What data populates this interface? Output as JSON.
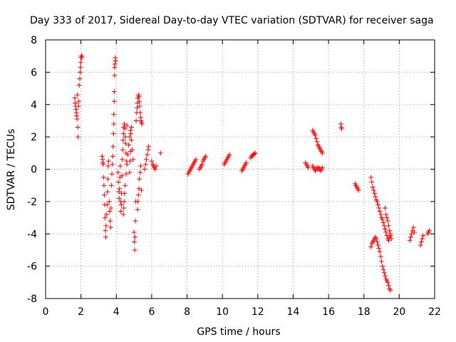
{
  "chart_data": {
    "type": "scatter",
    "title": "Day 333 of 2017, Sidereal Day-to-day VTEC variation (SDTVAR) for receiver saga",
    "xlabel": "GPS time / hours",
    "ylabel": "SDTVAR / TECUs",
    "xlim": [
      0,
      22
    ],
    "ylim": [
      -8,
      8
    ],
    "xticks": [
      0,
      2,
      4,
      6,
      8,
      10,
      12,
      14,
      16,
      18,
      20,
      22
    ],
    "yticks": [
      -8,
      -6,
      -4,
      -2,
      0,
      2,
      4,
      6,
      8
    ],
    "grid": true,
    "marker": "+",
    "marker_color": "#ff0000",
    "series": [
      {
        "name": "SDTVAR",
        "points": [
          [
            1.65,
            4.4
          ],
          [
            1.68,
            4.1
          ],
          [
            1.7,
            3.9
          ],
          [
            1.72,
            3.7
          ],
          [
            1.74,
            3.5
          ],
          [
            1.76,
            3.3
          ],
          [
            1.78,
            3.1
          ],
          [
            1.8,
            4.6
          ],
          [
            1.82,
            2.6
          ],
          [
            1.84,
            2.0
          ],
          [
            1.86,
            3.9
          ],
          [
            1.88,
            4.2
          ],
          [
            1.9,
            5.2
          ],
          [
            1.93,
            5.6
          ],
          [
            1.95,
            6.0
          ],
          [
            1.97,
            6.3
          ],
          [
            1.99,
            6.6
          ],
          [
            2.0,
            6.9
          ],
          [
            2.02,
            7.0
          ],
          [
            2.04,
            6.9
          ],
          [
            2.06,
            7.0
          ],
          [
            3.2,
            0.8
          ],
          [
            3.22,
            0.6
          ],
          [
            3.24,
            0.4
          ],
          [
            3.26,
            0.3
          ],
          [
            3.28,
            -0.5
          ],
          [
            3.3,
            -1.0
          ],
          [
            3.32,
            -1.6
          ],
          [
            3.34,
            -2.2
          ],
          [
            3.36,
            -3.0
          ],
          [
            3.38,
            -3.8
          ],
          [
            3.4,
            -4.2
          ],
          [
            3.42,
            -3.5
          ],
          [
            3.45,
            -2.8
          ],
          [
            3.48,
            -2.2
          ],
          [
            3.5,
            -1.4
          ],
          [
            3.52,
            -0.6
          ],
          [
            3.54,
            0.2
          ],
          [
            3.56,
            0.5
          ],
          [
            3.6,
            -2.0
          ],
          [
            3.62,
            -2.6
          ],
          [
            3.65,
            -3.2
          ],
          [
            3.68,
            -3.6
          ],
          [
            3.7,
            -2.4
          ],
          [
            3.72,
            -1.0
          ],
          [
            3.75,
            -0.3
          ],
          [
            3.78,
            0.3
          ],
          [
            3.8,
            0.8
          ],
          [
            3.82,
            1.4
          ],
          [
            3.84,
            2.2
          ],
          [
            3.86,
            3.4
          ],
          [
            3.88,
            4.8
          ],
          [
            3.9,
            5.8
          ],
          [
            3.92,
            6.5
          ],
          [
            3.94,
            6.9
          ],
          [
            3.96,
            6.7
          ],
          [
            3.9,
            6.3
          ],
          [
            3.88,
            4.2
          ],
          [
            3.86,
            2.8
          ],
          [
            4.1,
            -0.2
          ],
          [
            4.12,
            -0.8
          ],
          [
            4.14,
            -1.4
          ],
          [
            4.16,
            -1.8
          ],
          [
            4.18,
            -1.2
          ],
          [
            4.2,
            -0.5
          ],
          [
            4.22,
            0.2
          ],
          [
            4.24,
            -2.0
          ],
          [
            4.26,
            -2.6
          ],
          [
            4.28,
            -2.2
          ],
          [
            4.3,
            -1.5
          ],
          [
            4.32,
            -0.4
          ],
          [
            4.34,
            0.6
          ],
          [
            4.36,
            1.2
          ],
          [
            4.38,
            1.8
          ],
          [
            4.4,
            2.2
          ],
          [
            4.42,
            2.6
          ],
          [
            4.45,
            2.8
          ],
          [
            4.48,
            2.5
          ],
          [
            4.5,
            2.0
          ],
          [
            4.52,
            1.6
          ],
          [
            4.55,
            1.0
          ],
          [
            4.58,
            0.5
          ],
          [
            4.6,
            2.7
          ],
          [
            4.4,
            -2.8
          ],
          [
            4.42,
            -2.4
          ],
          [
            4.44,
            -2.0
          ],
          [
            4.46,
            -1.5
          ],
          [
            4.5,
            -1.0
          ],
          [
            4.55,
            -0.3
          ],
          [
            4.6,
            0.3
          ],
          [
            4.65,
            0.9
          ],
          [
            4.7,
            1.5
          ],
          [
            4.75,
            2.0
          ],
          [
            4.8,
            2.4
          ],
          [
            4.85,
            1.8
          ],
          [
            4.9,
            1.2
          ],
          [
            4.95,
            0.6
          ],
          [
            4.75,
            -0.2
          ],
          [
            4.78,
            0.5
          ],
          [
            4.8,
            1.1
          ],
          [
            4.82,
            2.2
          ],
          [
            4.85,
            2.6
          ],
          [
            5.0,
            -3.9
          ],
          [
            5.02,
            -4.5
          ],
          [
            5.04,
            -5.0
          ],
          [
            5.06,
            -4.2
          ],
          [
            5.08,
            -3.2
          ],
          [
            5.1,
            -2.0
          ],
          [
            5.12,
            3.0
          ],
          [
            5.15,
            3.5
          ],
          [
            5.18,
            3.8
          ],
          [
            5.2,
            4.1
          ],
          [
            5.22,
            4.4
          ],
          [
            5.25,
            4.6
          ],
          [
            5.28,
            4.5
          ],
          [
            5.3,
            4.2
          ],
          [
            5.32,
            3.9
          ],
          [
            5.35,
            3.5
          ],
          [
            5.38,
            3.2
          ],
          [
            5.4,
            3.0
          ],
          [
            5.42,
            2.9
          ],
          [
            5.45,
            2.8
          ],
          [
            5.2,
            -2.5
          ],
          [
            5.22,
            -2.0
          ],
          [
            5.25,
            -1.6
          ],
          [
            5.28,
            -1.2
          ],
          [
            5.3,
            -0.6
          ],
          [
            5.35,
            -0.2
          ],
          [
            5.38,
            0.2
          ],
          [
            5.42,
            -1.3
          ],
          [
            5.6,
            0.0
          ],
          [
            5.65,
            0.3
          ],
          [
            5.7,
            0.6
          ],
          [
            5.75,
            0.9
          ],
          [
            5.8,
            1.2
          ],
          [
            5.82,
            1.4
          ],
          [
            6.0,
            0.5
          ],
          [
            6.05,
            0.3
          ],
          [
            6.1,
            0.2
          ],
          [
            6.15,
            0.1
          ],
          [
            6.2,
            0.0
          ],
          [
            6.25,
            0.2
          ],
          [
            6.5,
            1.0
          ],
          [
            8.05,
            -0.3
          ],
          [
            8.1,
            -0.2
          ],
          [
            8.15,
            -0.1
          ],
          [
            8.2,
            0.0
          ],
          [
            8.25,
            0.1
          ],
          [
            8.3,
            0.2
          ],
          [
            8.35,
            0.3
          ],
          [
            8.4,
            0.4
          ],
          [
            8.45,
            0.5
          ],
          [
            8.5,
            0.6
          ],
          [
            8.7,
            0.0
          ],
          [
            8.75,
            0.1
          ],
          [
            8.8,
            0.2
          ],
          [
            8.85,
            0.3
          ],
          [
            8.9,
            0.5
          ],
          [
            8.95,
            0.6
          ],
          [
            9.0,
            0.7
          ],
          [
            9.05,
            0.8
          ],
          [
            10.1,
            0.3
          ],
          [
            10.15,
            0.4
          ],
          [
            10.2,
            0.5
          ],
          [
            10.25,
            0.6
          ],
          [
            10.3,
            0.7
          ],
          [
            10.35,
            0.8
          ],
          [
            10.4,
            0.9
          ],
          [
            11.1,
            -0.1
          ],
          [
            11.15,
            0.0
          ],
          [
            11.2,
            0.1
          ],
          [
            11.25,
            0.2
          ],
          [
            11.3,
            0.3
          ],
          [
            11.35,
            0.4
          ],
          [
            11.6,
            0.7
          ],
          [
            11.65,
            0.8
          ],
          [
            11.7,
            0.85
          ],
          [
            11.75,
            0.9
          ],
          [
            11.8,
            0.95
          ],
          [
            11.85,
            1.0
          ],
          [
            14.7,
            0.4
          ],
          [
            14.75,
            0.3
          ],
          [
            14.8,
            0.2
          ],
          [
            14.85,
            0.1
          ],
          [
            15.1,
            2.4
          ],
          [
            15.15,
            2.3
          ],
          [
            15.2,
            2.2
          ],
          [
            15.25,
            2.1
          ],
          [
            15.3,
            1.9
          ],
          [
            15.35,
            1.7
          ],
          [
            15.4,
            1.5
          ],
          [
            15.45,
            1.4
          ],
          [
            15.5,
            1.3
          ],
          [
            15.55,
            1.2
          ],
          [
            15.6,
            1.1
          ],
          [
            15.65,
            1.0
          ],
          [
            15.1,
            0.2
          ],
          [
            15.15,
            0.1
          ],
          [
            15.2,
            0.0
          ],
          [
            15.25,
            -0.1
          ],
          [
            15.3,
            0.0
          ],
          [
            15.35,
            0.1
          ],
          [
            15.4,
            0.0
          ],
          [
            15.45,
            0.1
          ],
          [
            15.5,
            0.0
          ],
          [
            15.55,
            -0.1
          ],
          [
            15.6,
            0.0
          ],
          [
            15.65,
            0.1
          ],
          [
            16.7,
            2.8
          ],
          [
            16.72,
            2.6
          ],
          [
            16.74,
            2.5
          ],
          [
            17.5,
            -0.9
          ],
          [
            17.55,
            -1.0
          ],
          [
            17.6,
            -1.1
          ],
          [
            17.65,
            -1.2
          ],
          [
            17.7,
            -1.3
          ],
          [
            18.4,
            -0.5
          ],
          [
            18.45,
            -0.8
          ],
          [
            18.5,
            -1.1
          ],
          [
            18.55,
            -1.3
          ],
          [
            18.6,
            -1.5
          ],
          [
            18.65,
            -1.7
          ],
          [
            18.7,
            -1.9
          ],
          [
            18.75,
            -2.0
          ],
          [
            18.8,
            -2.2
          ],
          [
            18.85,
            -2.4
          ],
          [
            18.9,
            -2.6
          ],
          [
            18.95,
            -2.8
          ],
          [
            19.0,
            -3.0
          ],
          [
            19.05,
            -3.1
          ],
          [
            19.1,
            -3.3
          ],
          [
            19.15,
            -3.5
          ],
          [
            19.2,
            -3.7
          ],
          [
            19.25,
            -3.9
          ],
          [
            19.3,
            -4.1
          ],
          [
            19.35,
            -4.3
          ],
          [
            19.4,
            -4.4
          ],
          [
            19.45,
            -4.2
          ],
          [
            19.5,
            -4.0
          ],
          [
            18.4,
            -4.8
          ],
          [
            18.45,
            -4.6
          ],
          [
            18.5,
            -4.5
          ],
          [
            18.55,
            -4.4
          ],
          [
            18.6,
            -4.3
          ],
          [
            18.65,
            -4.2
          ],
          [
            18.7,
            -4.3
          ],
          [
            18.75,
            -4.5
          ],
          [
            18.8,
            -4.7
          ],
          [
            18.85,
            -4.9
          ],
          [
            18.9,
            -5.1
          ],
          [
            18.95,
            -5.4
          ],
          [
            19.0,
            -5.7
          ],
          [
            19.05,
            -6.0
          ],
          [
            19.1,
            -6.2
          ],
          [
            19.15,
            -6.4
          ],
          [
            19.2,
            -6.6
          ],
          [
            19.25,
            -6.8
          ],
          [
            19.3,
            -6.9
          ],
          [
            19.35,
            -7.0
          ],
          [
            19.4,
            -7.2
          ],
          [
            19.45,
            -7.4
          ],
          [
            19.5,
            -7.5
          ],
          [
            19.2,
            -2.4
          ],
          [
            19.25,
            -2.8
          ],
          [
            19.3,
            -3.0
          ],
          [
            19.35,
            -3.2
          ],
          [
            19.4,
            -3.5
          ],
          [
            19.45,
            -3.8
          ],
          [
            19.5,
            -4.1
          ],
          [
            19.55,
            -4.3
          ],
          [
            20.6,
            -4.4
          ],
          [
            20.65,
            -4.2
          ],
          [
            20.7,
            -4.0
          ],
          [
            20.75,
            -3.8
          ],
          [
            20.8,
            -3.6
          ],
          [
            20.85,
            -3.9
          ],
          [
            21.2,
            -4.7
          ],
          [
            21.25,
            -4.5
          ],
          [
            21.3,
            -4.3
          ],
          [
            21.35,
            -4.1
          ],
          [
            21.6,
            -4.0
          ],
          [
            21.65,
            -3.9
          ],
          [
            21.7,
            -3.8
          ]
        ]
      }
    ]
  }
}
